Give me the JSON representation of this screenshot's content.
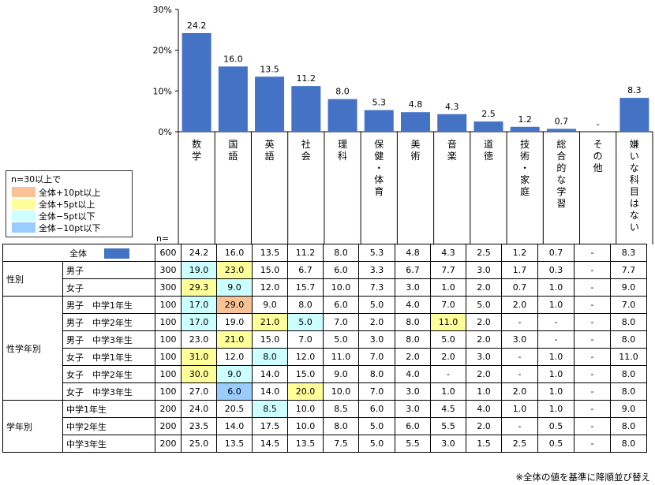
{
  "chart_data": {
    "type": "bar",
    "categories": [
      "数学",
      "国語",
      "英語",
      "社会",
      "理科",
      "保健・体育",
      "美術",
      "音楽",
      "道徳",
      "技術・家庭",
      "総合的な学習",
      "その他",
      "嫌いな科目はない"
    ],
    "values": [
      24.2,
      16.0,
      13.5,
      11.2,
      8.0,
      5.3,
      4.8,
      4.3,
      2.5,
      1.2,
      0.7,
      null,
      8.3
    ],
    "value_labels": [
      "24.2",
      "16.0",
      "13.5",
      "11.2",
      "8.0",
      "5.3",
      "4.8",
      "4.3",
      "2.5",
      "1.2",
      "0.7",
      "-",
      "8.3"
    ],
    "y_ticks": [
      "30%",
      "20%",
      "10%",
      "0%"
    ],
    "ylim": [
      0,
      30
    ],
    "bar_color": "#4472c4"
  },
  "legend": {
    "title": "n=30以上で",
    "items": [
      {
        "label": "全体+10pt以上",
        "color": "#f9c294"
      },
      {
        "label": "全体+5pt以上",
        "color": "#ffff99"
      },
      {
        "label": "全体−5pt以下",
        "color": "#ccffff"
      },
      {
        "label": "全体−10pt以下",
        "color": "#99ccff"
      }
    ]
  },
  "n_label": "n=",
  "table": {
    "rows": [
      {
        "group": "",
        "sub": "全体",
        "n": "600",
        "vals": [
          "24.2",
          "16.0",
          "13.5",
          "11.2",
          "8.0",
          "5.3",
          "4.8",
          "4.3",
          "2.5",
          "1.2",
          "0.7",
          "-",
          "8.3"
        ],
        "hl": [
          "",
          "",
          "",
          "",
          "",
          "",
          "",
          "",
          "",
          "",
          "",
          "",
          ""
        ]
      },
      {
        "group": "性別",
        "sub": "男子",
        "n": "300",
        "vals": [
          "19.0",
          "23.0",
          "15.0",
          "6.7",
          "6.0",
          "3.3",
          "6.7",
          "7.7",
          "3.0",
          "1.7",
          "0.3",
          "-",
          "7.7"
        ],
        "hl": [
          "m5",
          "p5",
          "",
          "",
          "",
          "",
          "",
          "",
          "",
          "",
          "",
          "",
          ""
        ]
      },
      {
        "group": "",
        "sub": "女子",
        "n": "300",
        "vals": [
          "29.3",
          "9.0",
          "12.0",
          "15.7",
          "10.0",
          "7.3",
          "3.0",
          "1.0",
          "2.0",
          "0.7",
          "1.0",
          "-",
          "9.0"
        ],
        "hl": [
          "p5",
          "m5",
          "",
          "",
          "",
          "",
          "",
          "",
          "",
          "",
          "",
          "",
          ""
        ]
      },
      {
        "group": "性学年別",
        "sub": "男子　中学1年生",
        "n": "100",
        "vals": [
          "17.0",
          "29.0",
          "9.0",
          "8.0",
          "6.0",
          "5.0",
          "4.0",
          "7.0",
          "5.0",
          "2.0",
          "1.0",
          "-",
          "7.0"
        ],
        "hl": [
          "m5",
          "p10",
          "",
          "",
          "",
          "",
          "",
          "",
          "",
          "",
          "",
          "",
          ""
        ]
      },
      {
        "group": "",
        "sub": "男子　中学2年生",
        "n": "100",
        "vals": [
          "17.0",
          "19.0",
          "21.0",
          "5.0",
          "7.0",
          "2.0",
          "8.0",
          "11.0",
          "2.0",
          "-",
          "-",
          "-",
          "8.0"
        ],
        "hl": [
          "m5",
          "",
          "p5",
          "m5",
          "",
          "",
          "",
          "p5",
          "",
          "",
          "",
          "",
          ""
        ]
      },
      {
        "group": "",
        "sub": "男子　中学3年生",
        "n": "100",
        "vals": [
          "23.0",
          "21.0",
          "15.0",
          "7.0",
          "5.0",
          "3.0",
          "8.0",
          "5.0",
          "2.0",
          "3.0",
          "-",
          "-",
          "8.0"
        ],
        "hl": [
          "",
          "p5",
          "",
          "",
          "",
          "",
          "",
          "",
          "",
          "",
          "",
          "",
          ""
        ]
      },
      {
        "group": "",
        "sub": "女子　中学1年生",
        "n": "100",
        "vals": [
          "31.0",
          "12.0",
          "8.0",
          "12.0",
          "11.0",
          "7.0",
          "2.0",
          "2.0",
          "3.0",
          "-",
          "1.0",
          "-",
          "11.0"
        ],
        "hl": [
          "p5",
          "",
          "m5",
          "",
          "",
          "",
          "",
          "",
          "",
          "",
          "",
          "",
          ""
        ]
      },
      {
        "group": "",
        "sub": "女子　中学2年生",
        "n": "100",
        "vals": [
          "30.0",
          "9.0",
          "14.0",
          "15.0",
          "9.0",
          "8.0",
          "4.0",
          "-",
          "2.0",
          "-",
          "1.0",
          "-",
          "8.0"
        ],
        "hl": [
          "p5",
          "m5",
          "",
          "",
          "",
          "",
          "",
          "",
          "",
          "",
          "",
          "",
          ""
        ]
      },
      {
        "group": "",
        "sub": "女子　中学3年生",
        "n": "100",
        "vals": [
          "27.0",
          "6.0",
          "14.0",
          "20.0",
          "10.0",
          "7.0",
          "3.0",
          "1.0",
          "1.0",
          "2.0",
          "1.0",
          "-",
          "8.0"
        ],
        "hl": [
          "",
          "m10",
          "",
          "p5",
          "",
          "",
          "",
          "",
          "",
          "",
          "",
          "",
          ""
        ]
      },
      {
        "group": "学年別",
        "sub": "中学1年生",
        "n": "200",
        "vals": [
          "24.0",
          "20.5",
          "8.5",
          "10.0",
          "8.5",
          "6.0",
          "3.0",
          "4.5",
          "4.0",
          "1.0",
          "1.0",
          "-",
          "9.0"
        ],
        "hl": [
          "",
          "",
          "m5",
          "",
          "",
          "",
          "",
          "",
          "",
          "",
          "",
          "",
          ""
        ]
      },
      {
        "group": "",
        "sub": "中学2年生",
        "n": "200",
        "vals": [
          "23.5",
          "14.0",
          "17.5",
          "10.0",
          "8.0",
          "5.0",
          "6.0",
          "5.5",
          "2.0",
          "-",
          "0.5",
          "-",
          "8.0"
        ],
        "hl": [
          "",
          "",
          "",
          "",
          "",
          "",
          "",
          "",
          "",
          "",
          "",
          "",
          ""
        ]
      },
      {
        "group": "",
        "sub": "中学3年生",
        "n": "200",
        "vals": [
          "25.0",
          "13.5",
          "14.5",
          "13.5",
          "7.5",
          "5.0",
          "5.5",
          "3.0",
          "1.5",
          "2.5",
          "0.5",
          "-",
          "8.0"
        ],
        "hl": [
          "",
          "",
          "",
          "",
          "",
          "",
          "",
          "",
          "",
          "",
          "",
          "",
          ""
        ]
      }
    ]
  },
  "footnote": "※全体の値を基準に降順並び替え"
}
